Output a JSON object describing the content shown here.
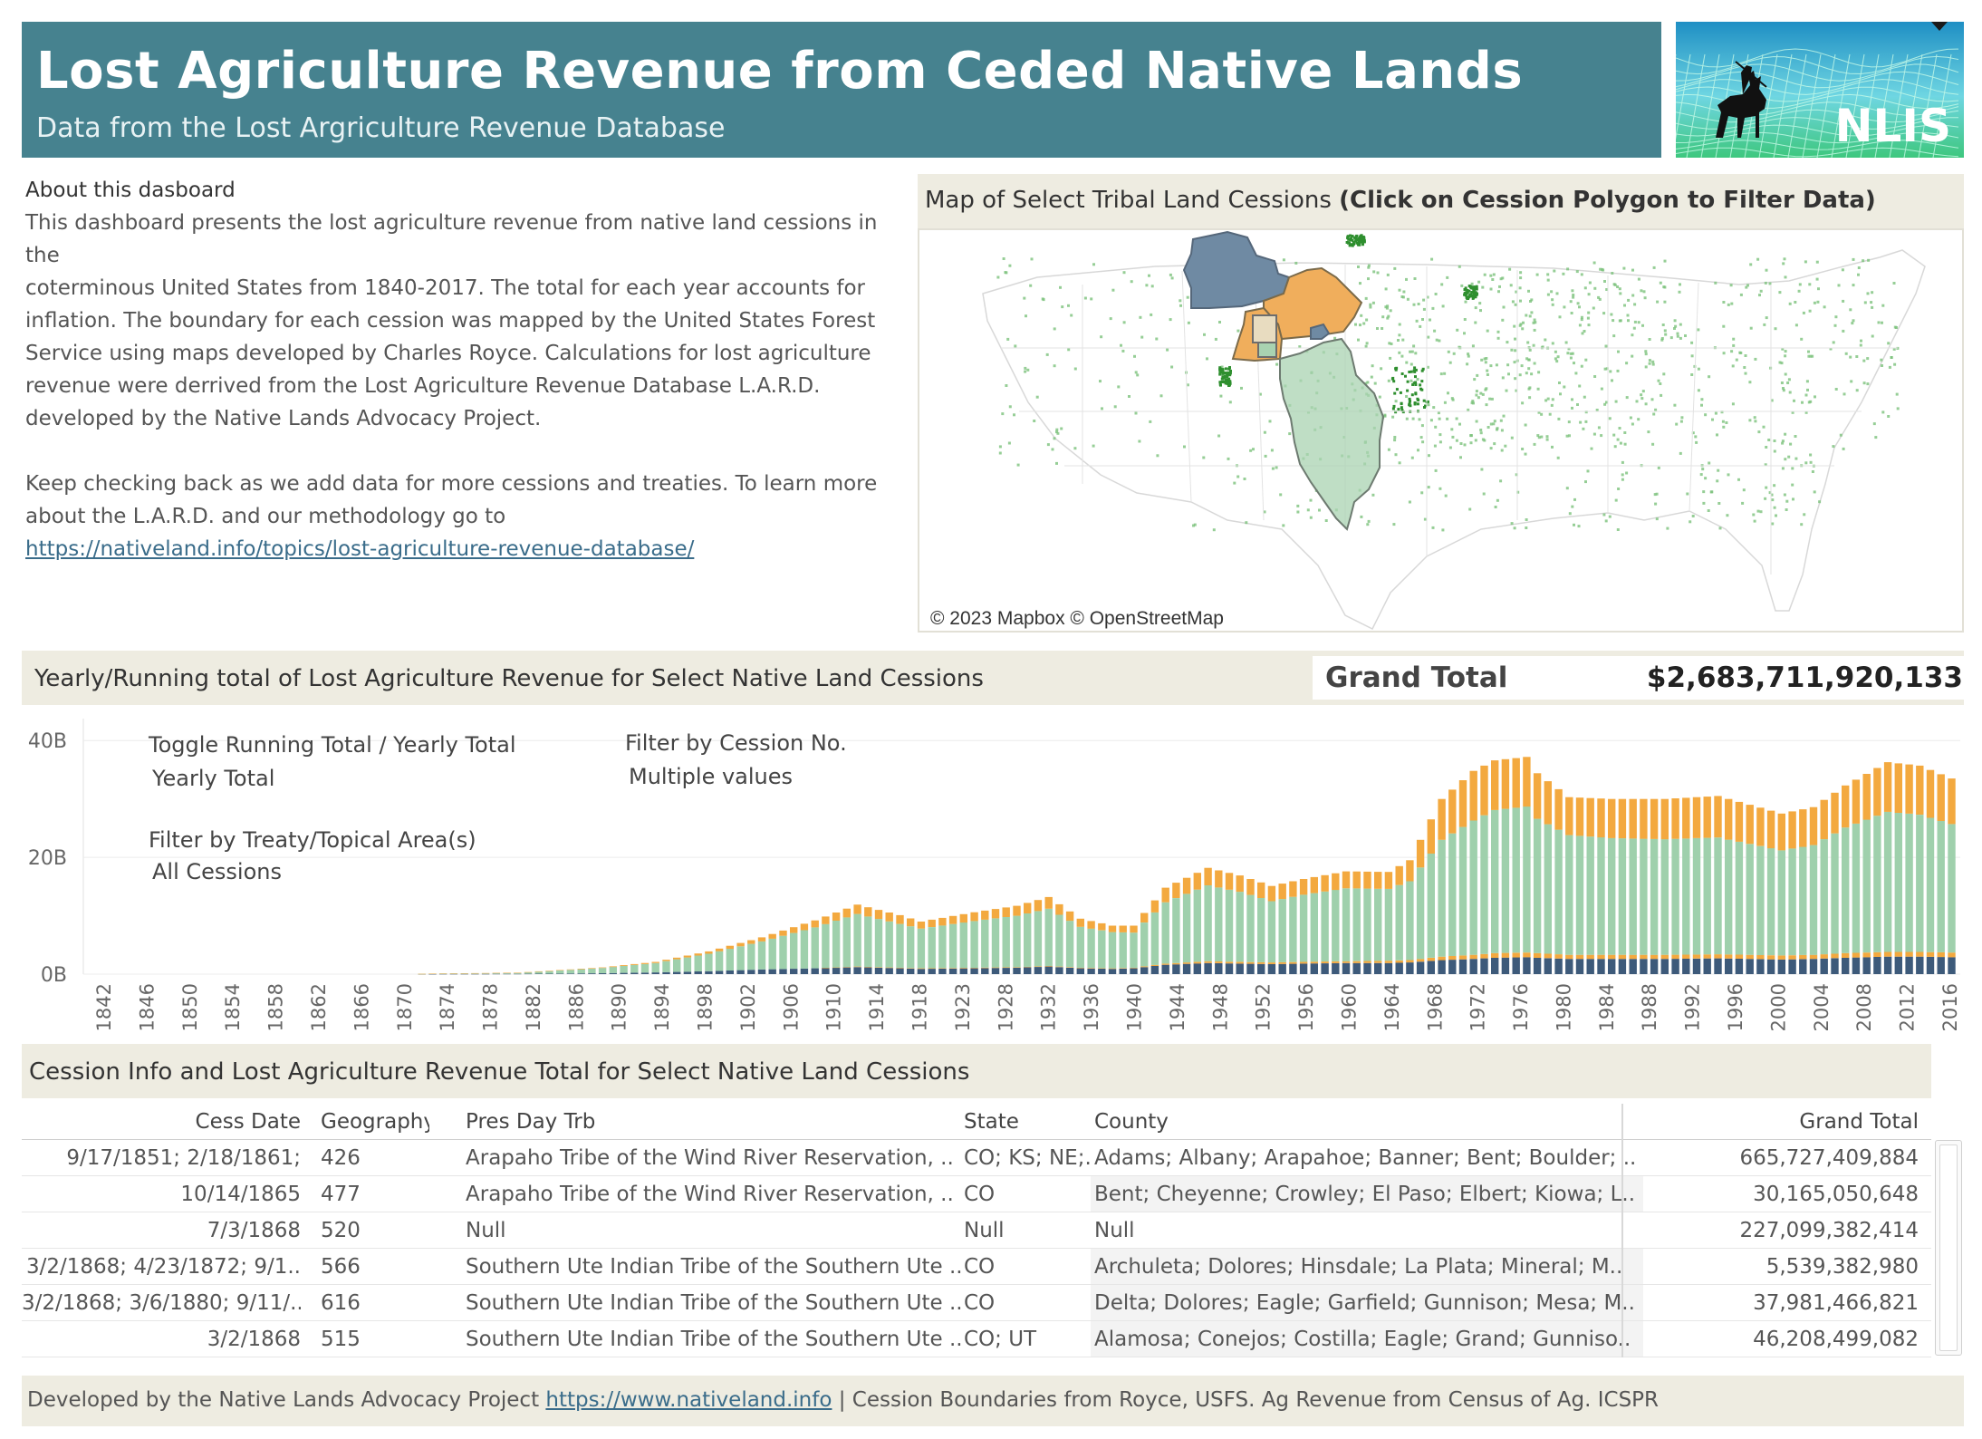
{
  "header": {
    "title": "Lost Agriculture Revenue from Ceded Native Lands",
    "subtitle": "Data from the Lost Argriculture Revenue Database"
  },
  "logo": {
    "text": "NLIS",
    "colors": {
      "sky": "#2a9ed0",
      "mesh": "#a8f0d8",
      "ground": "#3ec77e"
    }
  },
  "about": {
    "title": "About this dasboard",
    "para1": [
      "This dashboard presents the lost agriculture revenue  from native land cessions in the",
      "coterminous United States from 1840-2017. The total for each year accounts for",
      "inflation. The boundary for each cession was mapped by the United States Forest",
      "Service using maps developed by Charles Royce. Calculations for lost agriculture",
      "revenue were derrived from the Lost Agriculture Revenue Database L.A.R.D.",
      "developed by the Native Lands Advocacy Project."
    ],
    "para2": [
      "Keep checking back as we  add data for more cessions and treaties. To learn more",
      "about the L.A.R.D. and our methodology go to"
    ],
    "link": "https://nativeland.info/topics/lost-agriculture-revenue-database/"
  },
  "map": {
    "title_plain": "Map of Select Tribal Land Cessions ",
    "title_bold": "(Click on Cession Polygon to Filter Data)",
    "attribution": "© 2023 Mapbox © OpenStreetMap",
    "colors": {
      "cession_blue": "#6f8aa3",
      "cession_orange": "#f0ae5c",
      "cession_green": "#a9d3b1",
      "cession_tan": "#e8dcc0",
      "cropland": "#7cc27c",
      "cropland_dark": "#2f8f2f"
    }
  },
  "chart_section": {
    "title": "Yearly/Running total of Lost Agriculture Revenue for Select Native Land Cessions",
    "grand_total_label": "Grand Total",
    "grand_total_value": "$2,683,711,920,133"
  },
  "controls": {
    "toggle_label": "Toggle Running Total / Yearly Total",
    "toggle_value": "Yearly Total",
    "cession_label": "Filter by Cession No.",
    "cession_value": "Multiple values",
    "treaty_label": "Filter by Treaty/Topical Area(s)",
    "treaty_value": "All Cessions"
  },
  "chart_data": {
    "type": "bar",
    "stacked": true,
    "y_unit": "billions USD",
    "ylim": [
      0,
      45
    ],
    "yticks": [
      {
        "value": 0,
        "label": "0B"
      },
      {
        "value": 20,
        "label": "20B"
      },
      {
        "value": 40,
        "label": "40B"
      }
    ],
    "x_start": 1842,
    "x_end": 2017,
    "x_step": 1,
    "xtick_labels": [
      "1842",
      "1846",
      "1850",
      "1854",
      "1858",
      "1862",
      "1866",
      "1870",
      "1874",
      "1878",
      "1882",
      "1886",
      "1890",
      "1894",
      "1898",
      "1902",
      "1906",
      "1910",
      "1914",
      "1918",
      "1923",
      "1928",
      "1932",
      "1936",
      "1940",
      "1944",
      "1948",
      "1952",
      "1956",
      "1960",
      "1964",
      "1968",
      "1972",
      "1976",
      "1980",
      "1984",
      "1988",
      "1992",
      "1996",
      "2000",
      "2004",
      "2008",
      "2012",
      "2016"
    ],
    "series_colors": [
      "#3d5a7a",
      "#f3a93f",
      "#9fd0ac",
      "#f3a93f"
    ],
    "keyframes": [
      [
        1842,
        0,
        0,
        0,
        0
      ],
      [
        1872,
        0,
        0,
        0,
        0
      ],
      [
        1874,
        0.02,
        0,
        0.06,
        0.02
      ],
      [
        1882,
        0.05,
        0,
        0.15,
        0.05
      ],
      [
        1890,
        0.15,
        0,
        0.9,
        0.1
      ],
      [
        1895,
        0.3,
        0,
        1.6,
        0.2
      ],
      [
        1900,
        0.5,
        0,
        3.0,
        0.4
      ],
      [
        1905,
        0.8,
        0,
        4.8,
        0.7
      ],
      [
        1910,
        1.0,
        0,
        7.0,
        1.2
      ],
      [
        1914,
        1.2,
        0.1,
        9.0,
        1.6
      ],
      [
        1918,
        1.0,
        0.1,
        7.5,
        1.5
      ],
      [
        1920,
        0.9,
        0.1,
        6.8,
        1.2
      ],
      [
        1925,
        1.0,
        0.1,
        8.0,
        1.5
      ],
      [
        1929,
        1.1,
        0.1,
        8.8,
        1.7
      ],
      [
        1932,
        1.3,
        0.1,
        9.8,
        2.0
      ],
      [
        1935,
        1.0,
        0.1,
        7.0,
        1.4
      ],
      [
        1938,
        0.9,
        0.1,
        6.2,
        1.1
      ],
      [
        1940,
        1.0,
        0.1,
        6.0,
        1.2
      ],
      [
        1943,
        1.6,
        0.2,
        10.5,
        2.5
      ],
      [
        1947,
        1.9,
        0.3,
        13.0,
        3.0
      ],
      [
        1950,
        1.8,
        0.3,
        12.0,
        2.8
      ],
      [
        1953,
        1.7,
        0.3,
        10.5,
        2.6
      ],
      [
        1956,
        1.8,
        0.3,
        11.5,
        2.7
      ],
      [
        1960,
        1.9,
        0.3,
        12.5,
        2.9
      ],
      [
        1964,
        1.9,
        0.4,
        12.3,
        2.9
      ],
      [
        1966,
        2.0,
        0.4,
        13.5,
        3.6
      ],
      [
        1969,
        2.4,
        0.6,
        20.0,
        7.0
      ],
      [
        1972,
        2.6,
        0.7,
        23.0,
        8.5
      ],
      [
        1974,
        2.8,
        0.8,
        24.5,
        8.5
      ],
      [
        1977,
        2.9,
        0.8,
        25.0,
        8.5
      ],
      [
        1978,
        2.8,
        0.8,
        23.0,
        7.8
      ],
      [
        1981,
        2.6,
        0.7,
        20.5,
        6.5
      ],
      [
        1985,
        2.6,
        0.7,
        20.0,
        6.7
      ],
      [
        1990,
        2.6,
        0.7,
        19.8,
        6.9
      ],
      [
        1995,
        2.7,
        0.7,
        20.0,
        7.1
      ],
      [
        1998,
        2.6,
        0.7,
        19.0,
        6.7
      ],
      [
        2001,
        2.5,
        0.7,
        18.0,
        6.3
      ],
      [
        2004,
        2.6,
        0.7,
        18.8,
        6.5
      ],
      [
        2007,
        2.8,
        0.8,
        21.5,
        7.2
      ],
      [
        2011,
        3.0,
        0.8,
        24.0,
        8.5
      ],
      [
        2014,
        3.0,
        0.8,
        23.5,
        8.4
      ],
      [
        2017,
        2.9,
        0.8,
        22.0,
        7.8
      ]
    ]
  },
  "table_section": {
    "title": "Cession Info and Lost Agriculture Revenue Total for Select Native Land Cessions"
  },
  "table": {
    "columns": [
      "Cess Date",
      "Geography",
      "Pres Day Trb",
      "State",
      "County",
      "Grand Total"
    ],
    "rows": [
      [
        "9/17/1851; 2/18/1861;",
        "426",
        "Arapaho Tribe of the Wind River Reservation, ..",
        "CO; KS; NE;..",
        "Adams; Albany; Arapahoe; Banner; Bent; Boulder; ..",
        "665,727,409,884"
      ],
      [
        "10/14/1865",
        "477",
        "Arapaho Tribe of the Wind River Reservation, ..",
        "CO",
        "Bent; Cheyenne; Crowley; El Paso; Elbert; Kiowa; L..",
        "30,165,050,648"
      ],
      [
        "7/3/1868",
        "520",
        "Null",
        "Null",
        "Null",
        "227,099,382,414"
      ],
      [
        "3/2/1868; 4/23/1872; 9/1..",
        "566",
        "Southern Ute Indian Tribe of the Southern Ute ..",
        "CO",
        "Archuleta; Dolores; Hinsdale; La Plata; Mineral; M..",
        "5,539,382,980"
      ],
      [
        "3/2/1868; 3/6/1880; 9/11/..",
        "616",
        "Southern Ute Indian Tribe of the Southern Ute ..",
        "CO",
        "Delta; Dolores; Eagle; Garfield; Gunnison; Mesa; M..",
        "37,981,466,821"
      ],
      [
        "3/2/1868",
        "515",
        "Southern Ute Indian Tribe of the Southern Ute ..",
        "CO; UT",
        "Alamosa; Conejos; Costilla; Eagle; Grand; Gunniso..",
        "46,208,499,082"
      ]
    ]
  },
  "footer": {
    "prefix": "Developed by the Native Lands Advocacy Project ",
    "link": "https://www.nativeland.info",
    "suffix": " | Cession Boundaries from Royce, USFS. Ag Revenue from Census of Ag. ICSPR"
  }
}
